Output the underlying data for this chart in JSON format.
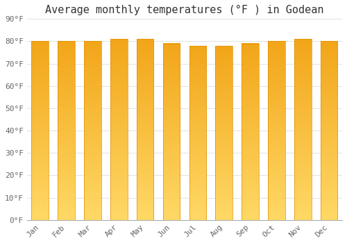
{
  "title": "Average monthly temperatures (°F ) in Godean",
  "months": [
    "Jan",
    "Feb",
    "Mar",
    "Apr",
    "May",
    "Jun",
    "Jul",
    "Aug",
    "Sep",
    "Oct",
    "Nov",
    "Dec"
  ],
  "values": [
    80,
    80,
    80,
    81,
    81,
    79,
    78,
    78,
    79,
    80,
    81,
    80
  ],
  "bar_color_top": "#F5A800",
  "bar_color_bottom": "#FFD966",
  "bar_edge_color": "#E09000",
  "background_color": "#FFFFFF",
  "plot_bg_color": "#FFFFFF",
  "grid_color": "#DDDDDD",
  "ylim": [
    0,
    90
  ],
  "ytick_step": 10,
  "title_fontsize": 11,
  "tick_fontsize": 8,
  "font_family": "monospace",
  "bar_width": 0.65
}
